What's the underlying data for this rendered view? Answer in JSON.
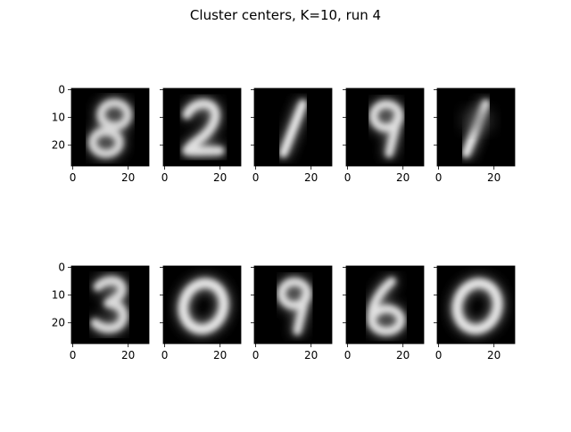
{
  "figure": {
    "title": "Cluster centers, K=10, run 4"
  },
  "chart_data": {
    "type": "heatmap",
    "title": "Cluster centers, K=10, run 4",
    "colormap": "gray",
    "image_shape": [
      28,
      28
    ],
    "xlim": [
      -0.5,
      27.5
    ],
    "ylim": [
      27.5,
      -0.5
    ],
    "x_ticks": [
      0,
      20
    ],
    "y_ticks": [
      0,
      10,
      20
    ],
    "grid": false,
    "layout": {
      "rows": 2,
      "cols": 5
    },
    "panels": [
      {
        "digit": "8",
        "y_tick_labels": true
      },
      {
        "digit": "2",
        "y_tick_labels": false
      },
      {
        "digit": "1",
        "y_tick_labels": false
      },
      {
        "digit": "9",
        "y_tick_labels": false
      },
      {
        "digit": "1",
        "y_tick_labels": false
      },
      {
        "digit": "3",
        "y_tick_labels": true
      },
      {
        "digit": "0",
        "y_tick_labels": false
      },
      {
        "digit": "9",
        "y_tick_labels": false
      },
      {
        "digit": "6",
        "y_tick_labels": false
      },
      {
        "digit": "0",
        "y_tick_labels": false
      }
    ]
  }
}
